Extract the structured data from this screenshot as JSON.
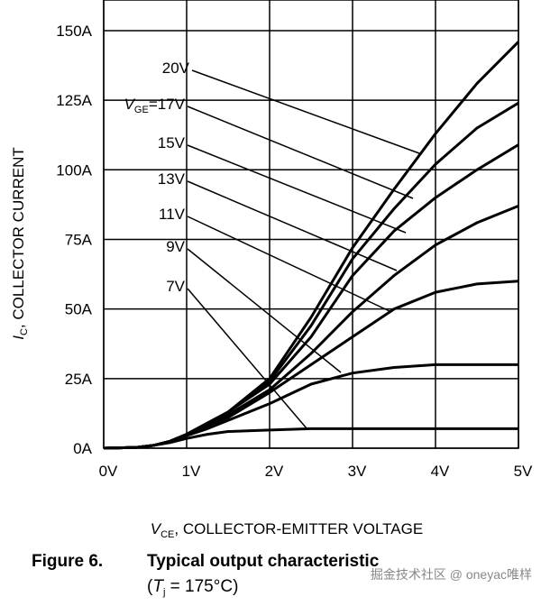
{
  "chart_data": {
    "type": "line",
    "y_label": {
      "symbol": "I",
      "sub": "C",
      "text": ", COLLECTOR CURRENT"
    },
    "x_label": {
      "symbol": "V",
      "sub": "CE",
      "text": ", COLLECTOR-EMITTER VOLTAGE"
    },
    "legend_prefix": {
      "symbol": "V",
      "sub": "GE",
      "text": "="
    },
    "x": [
      0,
      0.4,
      0.6,
      0.8,
      1,
      1.25,
      1.5,
      2,
      2.5,
      3,
      3.5,
      4,
      4.5,
      5
    ],
    "series": [
      {
        "name": "7V",
        "color": "#000000",
        "values": [
          0,
          0.3,
          1,
          2,
          3.5,
          5,
          6,
          6.5,
          7,
          7,
          7,
          7,
          7,
          7
        ]
      },
      {
        "name": "9V",
        "color": "#000000",
        "values": [
          0,
          0.3,
          1,
          2.5,
          4.5,
          7,
          10,
          16,
          23,
          27,
          29,
          30,
          30,
          30
        ]
      },
      {
        "name": "11V",
        "color": "#000000",
        "values": [
          0,
          0.3,
          1,
          2.5,
          5,
          8,
          11,
          20,
          30,
          40,
          50,
          56,
          59,
          60
        ]
      },
      {
        "name": "13V",
        "color": "#000000",
        "values": [
          0,
          0.3,
          1,
          2.5,
          5,
          8.5,
          12,
          21,
          34,
          49,
          62,
          73,
          81,
          87
        ]
      },
      {
        "name": "15V",
        "color": "#000000",
        "values": [
          0,
          0.3,
          1,
          2.5,
          5,
          9,
          13,
          23,
          40,
          62,
          78,
          90,
          100,
          109
        ]
      },
      {
        "name": "17V",
        "color": "#000000",
        "values": [
          0,
          0.3,
          1,
          2.5,
          5,
          9,
          13,
          24,
          44,
          68,
          86,
          102,
          115,
          124
        ]
      },
      {
        "name": "20V",
        "color": "#000000",
        "values": [
          0,
          0.3,
          1,
          2.5,
          5,
          9,
          13,
          25,
          47,
          72,
          93,
          113,
          131,
          146
        ]
      }
    ],
    "xlim": [
      0,
      5
    ],
    "ylim": [
      0,
      161
    ],
    "xticks": [
      {
        "value": 0,
        "label": "0V"
      },
      {
        "value": 1,
        "label": "1V"
      },
      {
        "value": 2,
        "label": "2V"
      },
      {
        "value": 3,
        "label": "3V"
      },
      {
        "value": 4,
        "label": "4V"
      },
      {
        "value": 5,
        "label": "5V"
      }
    ],
    "yticks": [
      {
        "value": 0,
        "label": "0A"
      },
      {
        "value": 25,
        "label": "25A"
      },
      {
        "value": 50,
        "label": "50A"
      },
      {
        "value": 75,
        "label": "75A"
      },
      {
        "value": 100,
        "label": "100A"
      },
      {
        "value": 125,
        "label": "125A"
      },
      {
        "value": 150,
        "label": "150A"
      }
    ],
    "grid": true,
    "caption": {
      "number": "Figure 6.",
      "title": "Typical output characteristic",
      "condition": {
        "open": "(",
        "symbol": "T",
        "sub": "j",
        "text": " = 175°C)"
      }
    },
    "watermark": "掘金技术社区 @ oneyac唯样"
  }
}
